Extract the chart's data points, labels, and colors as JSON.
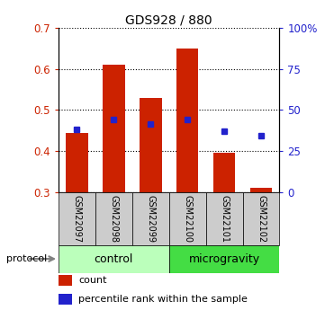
{
  "title": "GDS928 / 880",
  "samples": [
    "GSM22097",
    "GSM22098",
    "GSM22099",
    "GSM22100",
    "GSM22101",
    "GSM22102"
  ],
  "bar_values": [
    0.445,
    0.61,
    0.53,
    0.65,
    0.395,
    0.31
  ],
  "bar_bottom": 0.3,
  "percentile_values": [
    0.452,
    0.478,
    0.465,
    0.478,
    0.448,
    0.437
  ],
  "ylim_left": [
    0.3,
    0.7
  ],
  "ylim_right": [
    0,
    100
  ],
  "yticks_left": [
    0.3,
    0.4,
    0.5,
    0.6,
    0.7
  ],
  "yticks_right": [
    0,
    25,
    50,
    75,
    100
  ],
  "ytick_labels_right": [
    "0",
    "25",
    "50",
    "75",
    "100%"
  ],
  "bar_color": "#cc2200",
  "dot_color": "#2222cc",
  "control_label": "control",
  "microgravity_label": "microgravity",
  "protocol_label": "protocol",
  "legend_bar_label": "count",
  "legend_dot_label": "percentile rank within the sample",
  "control_bg": "#bbffbb",
  "microgravity_bg": "#44dd44",
  "sample_bg": "#cccccc",
  "bar_width": 0.6
}
